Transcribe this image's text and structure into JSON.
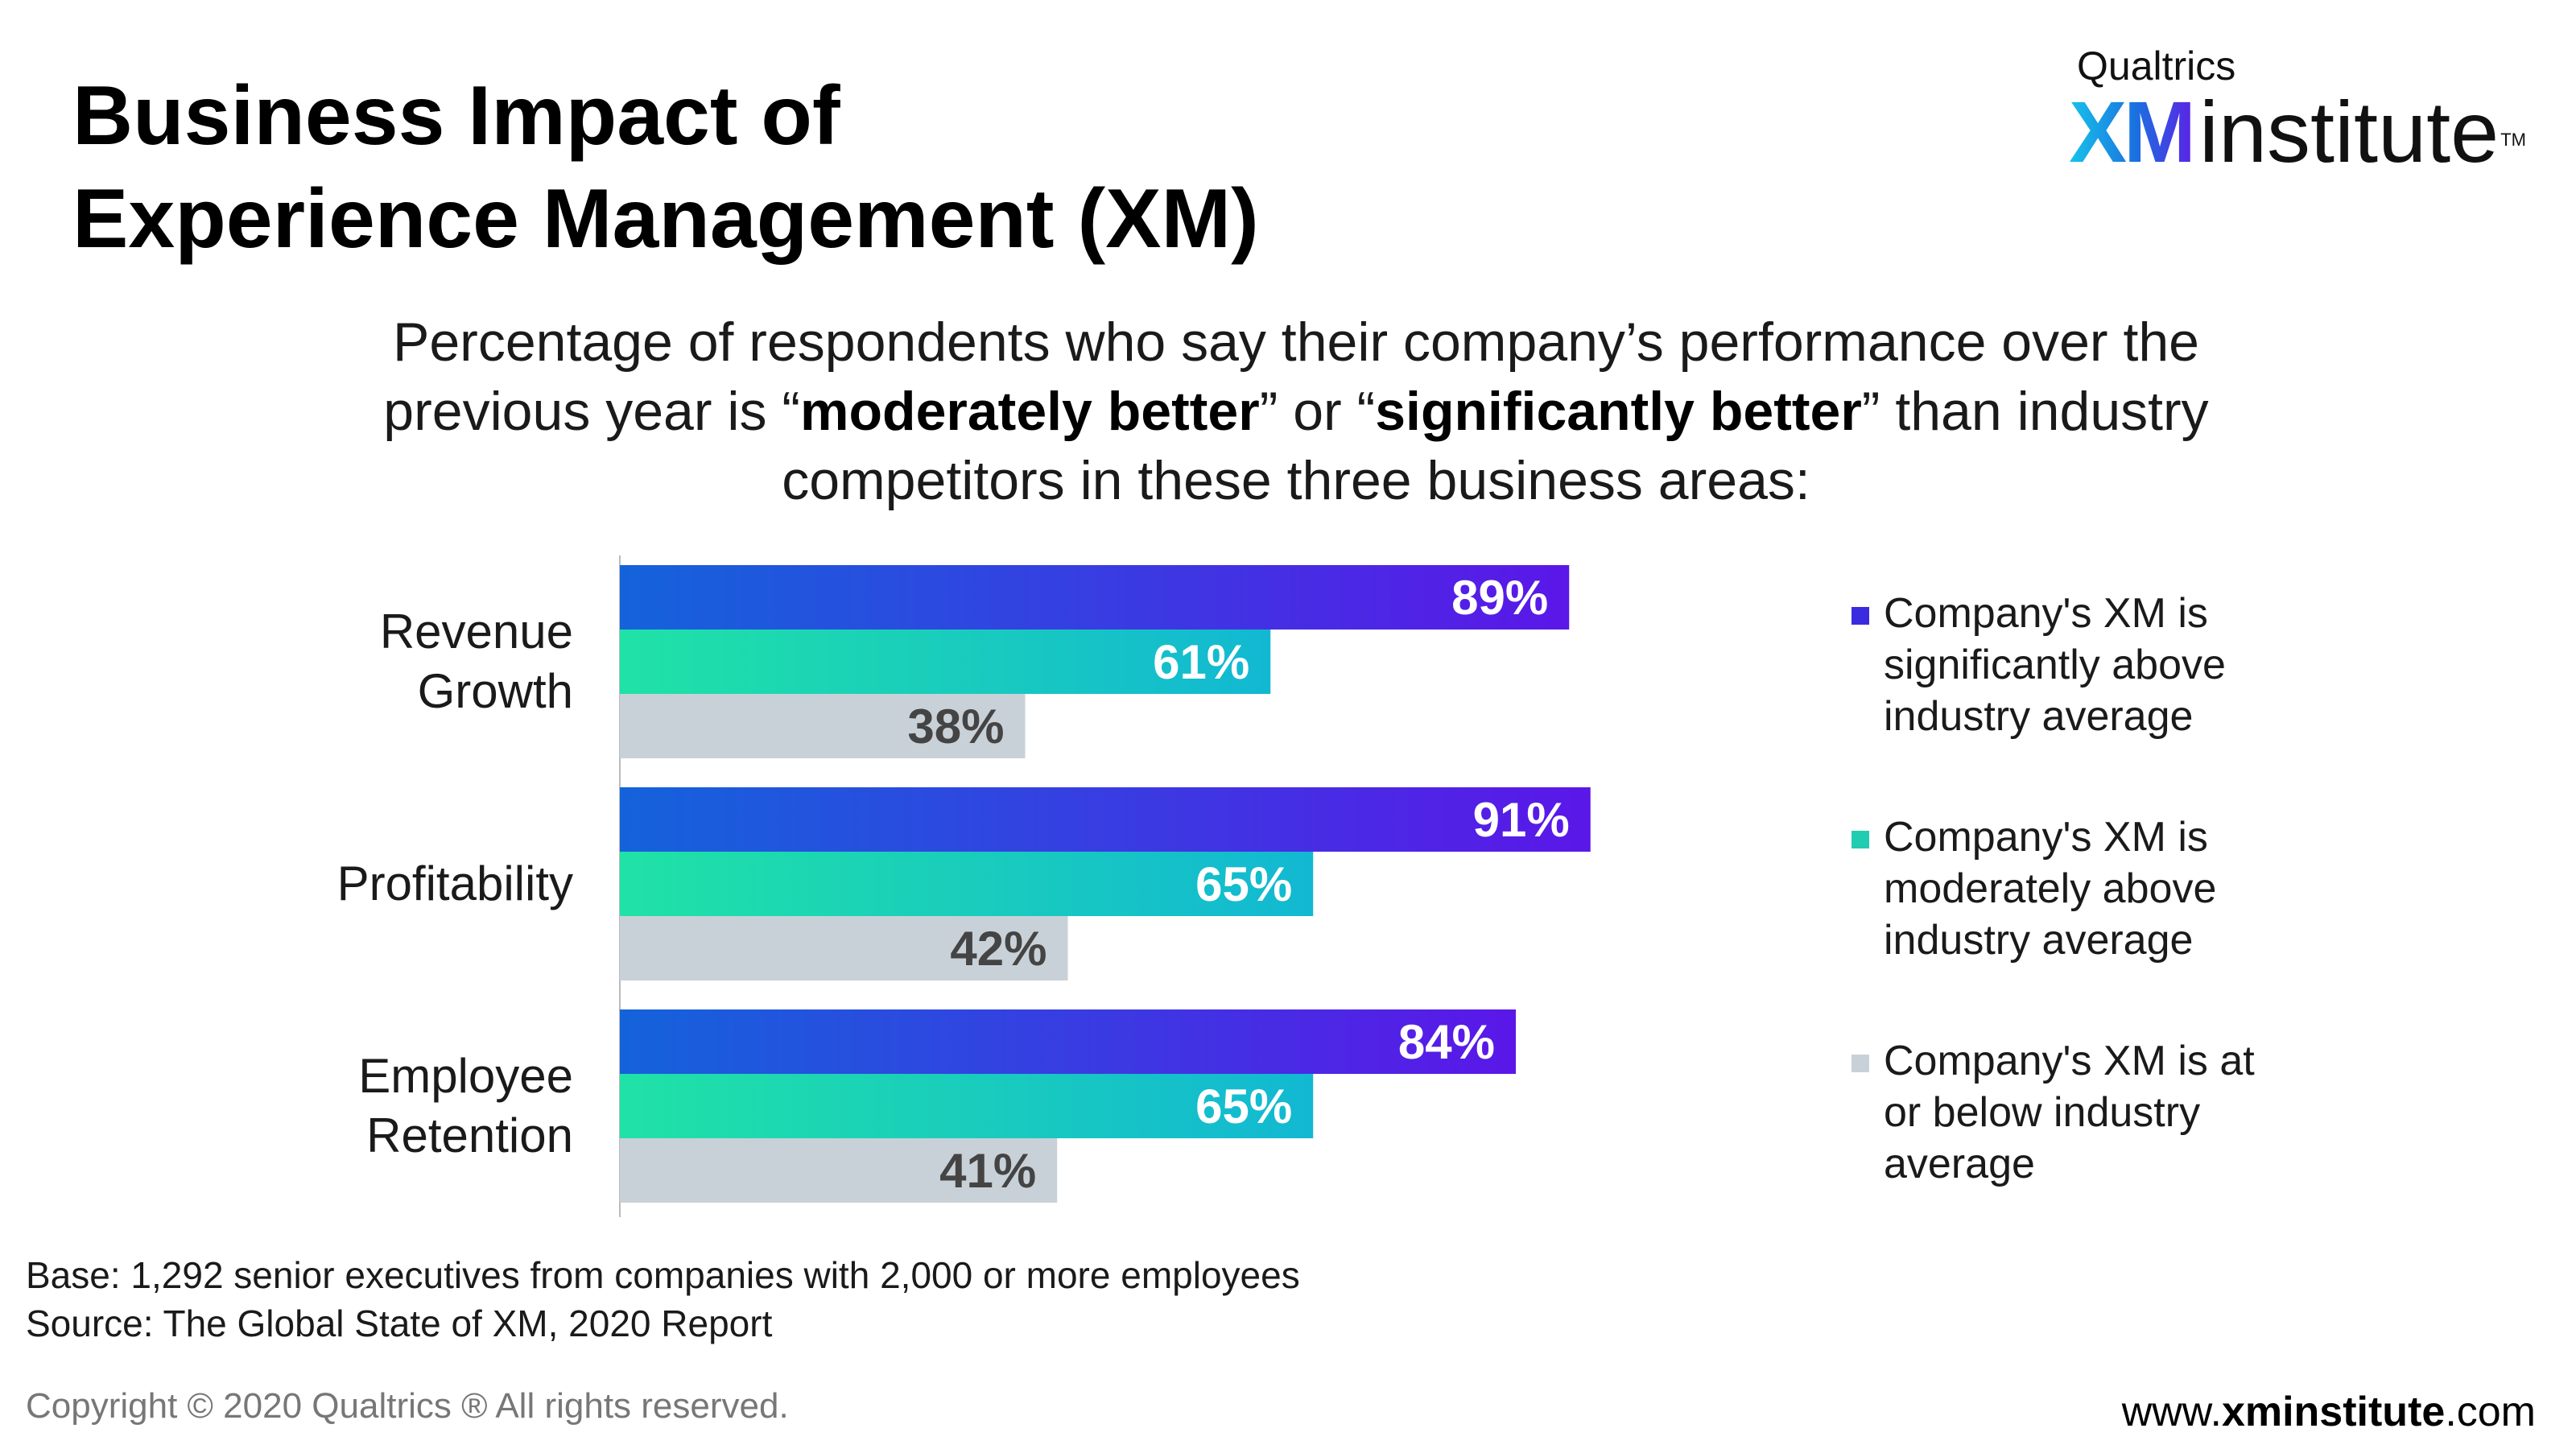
{
  "title": {
    "line1": "Business Impact of",
    "line2": "Experience Management (XM)"
  },
  "logo": {
    "small": "Qualtrics",
    "xm": "XM",
    "institute": "institute",
    "tm": "TM"
  },
  "subtitle": {
    "line1": "Percentage of respondents who say their company’s performance over the",
    "line2_pre": "previous year is “",
    "bold1": "moderately better",
    "line2_mid": "” or “",
    "bold2": "significantly better",
    "line2_post": "” than industry",
    "line3": "competitors in these three business areas:"
  },
  "chart_data": {
    "type": "bar",
    "orientation": "horizontal",
    "categories": [
      "Revenue Growth",
      "Profitability",
      "Employee Retention"
    ],
    "category_lines": [
      [
        "Revenue",
        "Growth"
      ],
      [
        "Profitability"
      ],
      [
        "Employee",
        "Retention"
      ]
    ],
    "series": [
      {
        "name": "Company's XM is significantly above industry average",
        "values": [
          89,
          91,
          84
        ],
        "labels": [
          "89%",
          "91%",
          "84%"
        ]
      },
      {
        "name": "Company's XM is moderately above industry average",
        "values": [
          61,
          65,
          65
        ],
        "labels": [
          "61%",
          "65%",
          "65%"
        ]
      },
      {
        "name": "Company's XM is at or below industry average",
        "values": [
          38,
          42,
          41
        ],
        "labels": [
          "38%",
          "42%",
          "41%"
        ]
      }
    ],
    "xlim": [
      0,
      100
    ],
    "grid": false
  },
  "legend": [
    {
      "lines": [
        "Company's XM is",
        "significantly above",
        "industry average"
      ],
      "color": "#3a2be0"
    },
    {
      "lines": [
        "Company's XM is",
        "moderately above",
        "industry average"
      ],
      "color": "#22ccb0"
    },
    {
      "lines": [
        "Company's XM is at",
        "or below industry",
        "average"
      ],
      "color": "#c9d1d8"
    }
  ],
  "colors": {
    "series1_start": "#1463db",
    "series1_end": "#5b17e8",
    "series2_start": "#20e2a6",
    "series2_end": "#12b8d2",
    "series3": "#c9d1d8",
    "label_light": "#ffffff",
    "label_dark": "#444444"
  },
  "footnote": {
    "base": "Base: 1,292 senior executives from companies with 2,000 or more employees",
    "source": "Source: The Global State of XM, 2020 Report"
  },
  "copyright": "Copyright © 2020 Qualtrics ® All rights reserved.",
  "website": {
    "pre": "www.",
    "bold": "xminstitute",
    "post": ".com"
  }
}
